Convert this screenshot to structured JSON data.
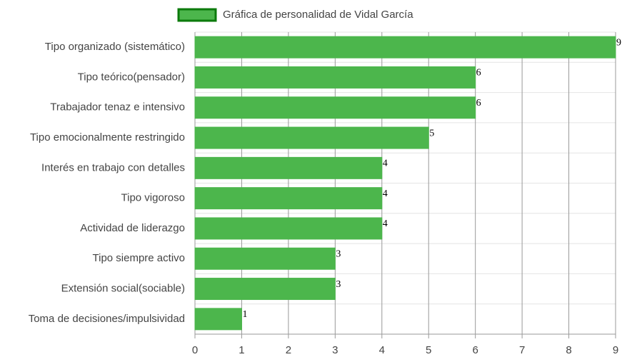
{
  "chart_data": {
    "type": "bar",
    "orientation": "horizontal",
    "legend_position": "top",
    "series": [
      {
        "name": "Gráfica de personalidad de Vidal García",
        "color": "#4cb64c",
        "border_color": "#0b7a0b",
        "values": [
          9,
          6,
          6,
          5,
          4,
          4,
          4,
          3,
          3,
          1
        ]
      }
    ],
    "categories": [
      "Tipo organizado (sistemático)",
      "Tipo teórico(pensador)",
      "Trabajador tenaz e intensivo",
      "Tipo emocionalmente restringido",
      "Interés en trabajo con detalles",
      "Tipo vigoroso",
      "Actividad de liderazgo",
      "Tipo siempre activo",
      "Extensión social(sociable)",
      "Toma de decisiones/impulsividad"
    ],
    "xlim": [
      0,
      9
    ],
    "xticks": [
      0,
      1,
      2,
      3,
      4,
      5,
      6,
      7,
      8,
      9
    ],
    "grid": true
  }
}
